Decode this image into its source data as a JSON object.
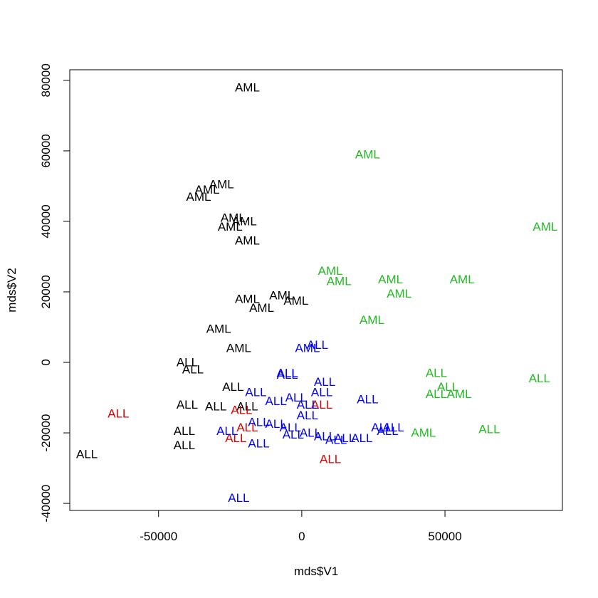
{
  "chart_data": {
    "type": "scatter",
    "title": "",
    "xlabel": "mds$V1",
    "ylabel": "mds$V2",
    "xlim": [
      -81000,
      91000
    ],
    "ylim": [
      -42000,
      83000
    ],
    "x_ticks": [
      -50000,
      0,
      50000
    ],
    "x_tick_labels": [
      "-50000",
      "0",
      "50000"
    ],
    "y_ticks": [
      -40000,
      -20000,
      0,
      20000,
      40000,
      60000,
      80000
    ],
    "y_tick_labels": [
      "-40000",
      "-20000",
      "0",
      "20000",
      "40000",
      "60000",
      "80000"
    ],
    "grid": false,
    "legend": "none",
    "colors": {
      "black": "#000000",
      "green": "#22bb22",
      "blue": "#0000ff",
      "red": "#dd0000"
    },
    "points": [
      {
        "x": -19000,
        "y": 78000,
        "label": "AML",
        "color": "black"
      },
      {
        "x": -28000,
        "y": 50500,
        "label": "AML",
        "color": "black"
      },
      {
        "x": -33000,
        "y": 49000,
        "label": "AML",
        "color": "black"
      },
      {
        "x": -36000,
        "y": 47000,
        "label": "AML",
        "color": "black"
      },
      {
        "x": -24000,
        "y": 41000,
        "label": "AML",
        "color": "black"
      },
      {
        "x": -20000,
        "y": 40000,
        "label": "AML",
        "color": "black"
      },
      {
        "x": -25000,
        "y": 38500,
        "label": "AML",
        "color": "black"
      },
      {
        "x": -19000,
        "y": 34500,
        "label": "AML",
        "color": "black"
      },
      {
        "x": -19000,
        "y": 18000,
        "label": "AML",
        "color": "black"
      },
      {
        "x": -7000,
        "y": 19000,
        "label": "AML",
        "color": "black"
      },
      {
        "x": -2000,
        "y": 17500,
        "label": "AML",
        "color": "black"
      },
      {
        "x": -14000,
        "y": 15500,
        "label": "AML",
        "color": "black"
      },
      {
        "x": -29000,
        "y": 9500,
        "label": "AML",
        "color": "black"
      },
      {
        "x": -22000,
        "y": 4000,
        "label": "AML",
        "color": "black"
      },
      {
        "x": 23000,
        "y": 59000,
        "label": "AML",
        "color": "green"
      },
      {
        "x": 85000,
        "y": 38500,
        "label": "AML",
        "color": "green"
      },
      {
        "x": 10000,
        "y": 26000,
        "label": "AML",
        "color": "green"
      },
      {
        "x": 13000,
        "y": 23000,
        "label": "AML",
        "color": "green"
      },
      {
        "x": 31000,
        "y": 23500,
        "label": "AML",
        "color": "green"
      },
      {
        "x": 56000,
        "y": 23500,
        "label": "AML",
        "color": "green"
      },
      {
        "x": 34000,
        "y": 19500,
        "label": "AML",
        "color": "green"
      },
      {
        "x": 24500,
        "y": 12000,
        "label": "AML",
        "color": "green"
      },
      {
        "x": 55000,
        "y": -9000,
        "label": "AML",
        "color": "green"
      },
      {
        "x": 42500,
        "y": -20000,
        "label": "AML",
        "color": "green"
      },
      {
        "x": 2000,
        "y": 4000,
        "label": "AML",
        "color": "blue"
      },
      {
        "x": -40000,
        "y": 0,
        "label": "ALL",
        "color": "black"
      },
      {
        "x": -38000,
        "y": -2000,
        "label": "ALL",
        "color": "black"
      },
      {
        "x": -24000,
        "y": -7000,
        "label": "ALL",
        "color": "black"
      },
      {
        "x": -40000,
        "y": -12000,
        "label": "ALL",
        "color": "black"
      },
      {
        "x": -30000,
        "y": -12500,
        "label": "ALL",
        "color": "black"
      },
      {
        "x": -19000,
        "y": -12500,
        "label": "ALL",
        "color": "black"
      },
      {
        "x": -41000,
        "y": -19500,
        "label": "ALL",
        "color": "black"
      },
      {
        "x": -41000,
        "y": -23500,
        "label": "ALL",
        "color": "black"
      },
      {
        "x": -75000,
        "y": -26000,
        "label": "ALL",
        "color": "black"
      },
      {
        "x": -64000,
        "y": -14500,
        "label": "ALL",
        "color": "red"
      },
      {
        "x": -21000,
        "y": -13500,
        "label": "ALL",
        "color": "red"
      },
      {
        "x": -19000,
        "y": -18500,
        "label": "ALL",
        "color": "red"
      },
      {
        "x": -23000,
        "y": -21500,
        "label": "ALL",
        "color": "red"
      },
      {
        "x": 7000,
        "y": -12000,
        "label": "ALL",
        "color": "red"
      },
      {
        "x": 10000,
        "y": -27500,
        "label": "ALL",
        "color": "red"
      },
      {
        "x": 5500,
        "y": 5000,
        "label": "ALL",
        "color": "blue"
      },
      {
        "x": -5000,
        "y": -3000,
        "label": "ALL",
        "color": "blue"
      },
      {
        "x": -5000,
        "y": -3500,
        "label": "ALL",
        "color": "blue"
      },
      {
        "x": 8000,
        "y": -5500,
        "label": "ALL",
        "color": "blue"
      },
      {
        "x": 7000,
        "y": -8500,
        "label": "ALL",
        "color": "blue"
      },
      {
        "x": -16000,
        "y": -8500,
        "label": "ALL",
        "color": "blue"
      },
      {
        "x": -9000,
        "y": -11000,
        "label": "ALL",
        "color": "blue"
      },
      {
        "x": -2000,
        "y": -10000,
        "label": "ALL",
        "color": "blue"
      },
      {
        "x": 2000,
        "y": -12000,
        "label": "ALL",
        "color": "blue"
      },
      {
        "x": 23000,
        "y": -10500,
        "label": "ALL",
        "color": "blue"
      },
      {
        "x": 2000,
        "y": -15000,
        "label": "ALL",
        "color": "blue"
      },
      {
        "x": -15000,
        "y": -17000,
        "label": "ALL",
        "color": "blue"
      },
      {
        "x": -9000,
        "y": -17500,
        "label": "ALL",
        "color": "blue"
      },
      {
        "x": -4000,
        "y": -18500,
        "label": "ALL",
        "color": "blue"
      },
      {
        "x": -3000,
        "y": -20500,
        "label": "ALL",
        "color": "blue"
      },
      {
        "x": -26000,
        "y": -19500,
        "label": "ALL",
        "color": "blue"
      },
      {
        "x": -15000,
        "y": -23000,
        "label": "ALL",
        "color": "blue"
      },
      {
        "x": 3000,
        "y": -20000,
        "label": "ALL",
        "color": "blue"
      },
      {
        "x": 8000,
        "y": -21000,
        "label": "ALL",
        "color": "blue"
      },
      {
        "x": 12000,
        "y": -22000,
        "label": "ALL",
        "color": "blue"
      },
      {
        "x": 15000,
        "y": -21500,
        "label": "ALL",
        "color": "blue"
      },
      {
        "x": 21000,
        "y": -21500,
        "label": "ALL",
        "color": "blue"
      },
      {
        "x": 28000,
        "y": -18500,
        "label": "ALL",
        "color": "blue"
      },
      {
        "x": 32000,
        "y": -18500,
        "label": "ALL",
        "color": "blue"
      },
      {
        "x": 30000,
        "y": -19500,
        "label": "ALL",
        "color": "blue"
      },
      {
        "x": -22000,
        "y": -38500,
        "label": "ALL",
        "color": "blue"
      },
      {
        "x": 47000,
        "y": -3000,
        "label": "ALL",
        "color": "green"
      },
      {
        "x": 51000,
        "y": -7000,
        "label": "ALL",
        "color": "green"
      },
      {
        "x": 47000,
        "y": -9000,
        "label": "ALL",
        "color": "green"
      },
      {
        "x": 83000,
        "y": -4500,
        "label": "ALL",
        "color": "green"
      },
      {
        "x": 65500,
        "y": -19000,
        "label": "ALL",
        "color": "green"
      }
    ]
  }
}
